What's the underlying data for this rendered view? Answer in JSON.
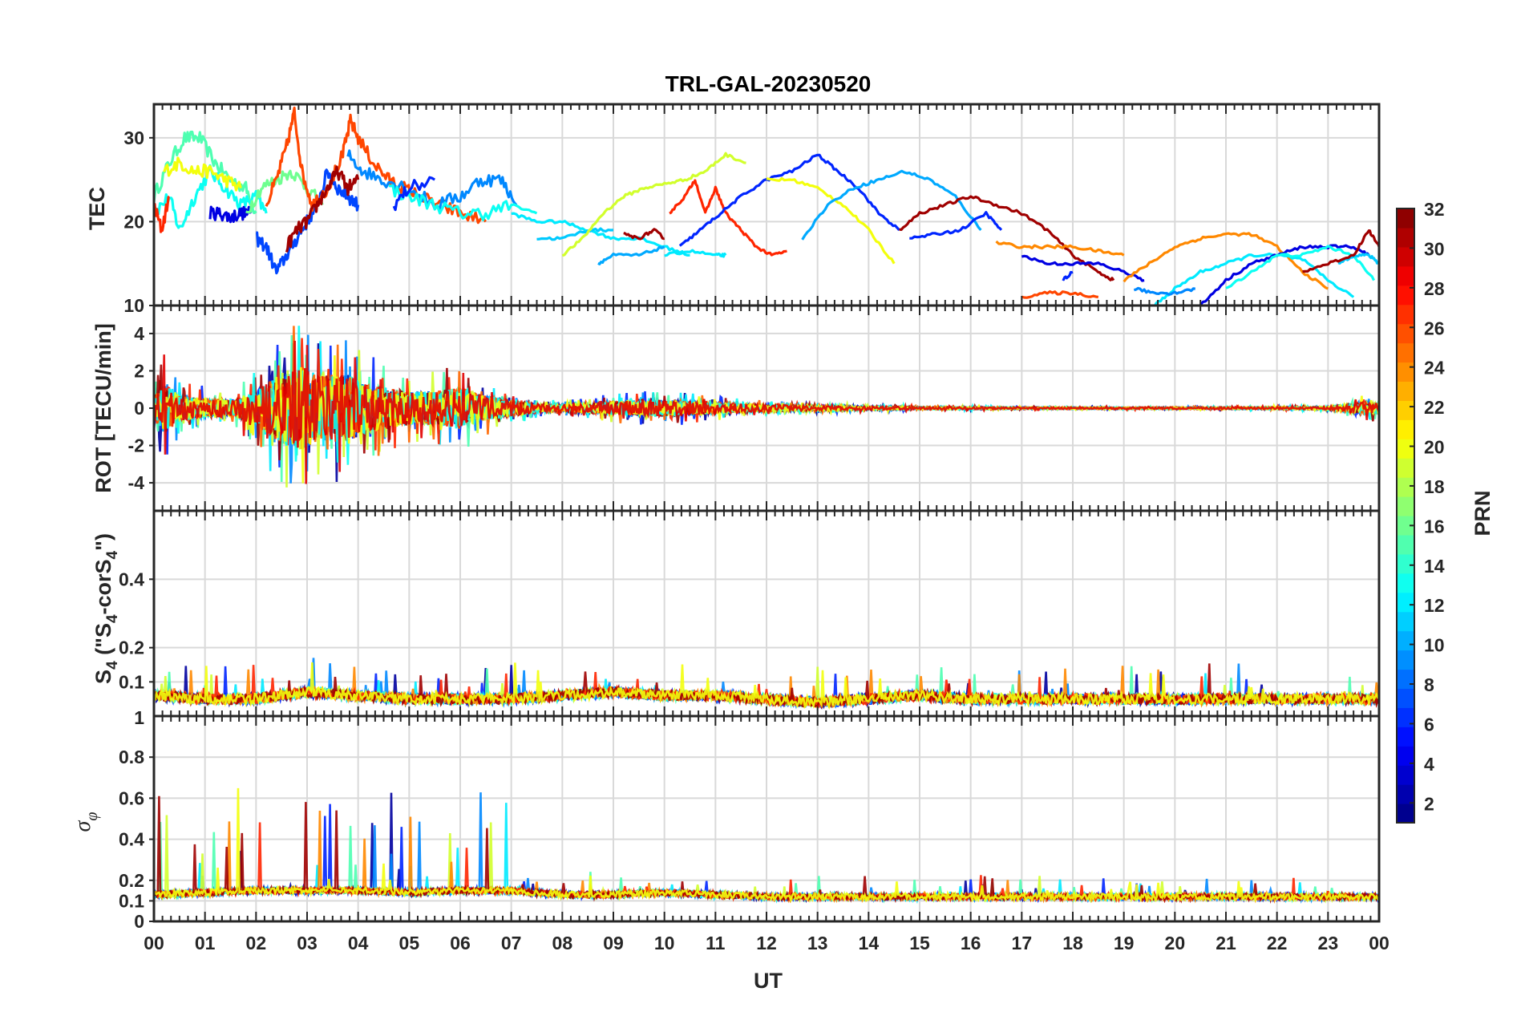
{
  "chart_data": {
    "type": "line",
    "title": "TRL-GAL-20230520",
    "xlabel": "UT",
    "x_range": [
      0,
      24
    ],
    "x_tick_labels": [
      "00",
      "01",
      "02",
      "03",
      "04",
      "05",
      "06",
      "07",
      "08",
      "09",
      "10",
      "11",
      "12",
      "13",
      "14",
      "15",
      "16",
      "17",
      "18",
      "19",
      "20",
      "21",
      "22",
      "23",
      "00"
    ],
    "colorbar": {
      "label": "PRN",
      "range": [
        1,
        32
      ],
      "tick_labels": [
        "2",
        "4",
        "6",
        "8",
        "10",
        "12",
        "14",
        "16",
        "18",
        "20",
        "22",
        "24",
        "26",
        "28",
        "30",
        "32"
      ],
      "colormap": "jet"
    },
    "panels": [
      {
        "name": "tec",
        "ylabel": "TEC",
        "ylim": [
          10,
          34
        ],
        "y_tick_labels": [
          "10",
          "20",
          "30"
        ],
        "y_ticks": [
          10,
          20,
          30
        ],
        "series": [
          {
            "prn": 15,
            "x": [
              0.0,
              0.3,
              0.6,
              0.9,
              1.2,
              1.5,
              1.8,
              2.0
            ],
            "y": [
              23,
              27,
              30,
              30,
              27,
              25,
              24,
              21
            ]
          },
          {
            "prn": 13,
            "x": [
              0.0,
              0.3,
              0.5,
              0.8,
              1.1,
              1.4,
              1.7,
              2.0,
              2.2
            ],
            "y": [
              21,
              23,
              19,
              23,
              26,
              24,
              22,
              23,
              21
            ]
          },
          {
            "prn": 20,
            "x": [
              0.2,
              0.5,
              0.8,
              1.1,
              1.4,
              1.7
            ],
            "y": [
              26,
              27,
              26,
              26,
              25,
              24
            ]
          },
          {
            "prn": 27,
            "x": [
              0.0,
              0.15,
              0.3
            ],
            "y": [
              22,
              19,
              23
            ]
          },
          {
            "prn": 4,
            "x": [
              1.1,
              1.3,
              1.5,
              1.7,
              1.9
            ],
            "y": [
              21,
              21,
              20.5,
              21,
              21
            ]
          },
          {
            "prn": 16,
            "x": [
              1.8,
              2.1,
              2.4,
              2.7,
              3.0,
              3.3
            ],
            "y": [
              21,
              24,
              25,
              26,
              24,
              22
            ]
          },
          {
            "prn": 7,
            "x": [
              2.0,
              2.2,
              2.4,
              2.6,
              2.8,
              3.0,
              3.2,
              3.4,
              3.6,
              3.8,
              4.0
            ],
            "y": [
              18,
              17,
              14,
              16,
              18,
              20,
              22,
              26,
              24,
              23,
              22
            ]
          },
          {
            "prn": 26,
            "x": [
              2.2,
              2.4,
              2.6,
              2.75,
              2.9,
              3.1,
              3.4,
              3.7,
              3.85,
              4.0,
              4.3,
              4.6,
              4.9,
              5.2,
              5.6,
              6.0,
              6.5
            ],
            "y": [
              22,
              25,
              29,
              33,
              26,
              22,
              24,
              28,
              32,
              30,
              27,
              25,
              24,
              23,
              22,
              21,
              20
            ]
          },
          {
            "prn": 31,
            "x": [
              2.6,
              2.8,
              3.0,
              3.2,
              3.4,
              3.6,
              3.8,
              4.0
            ],
            "y": [
              17,
              19,
              20,
              22,
              24,
              26,
              24,
              25
            ]
          },
          {
            "prn": 9,
            "x": [
              3.8,
              4.1,
              4.5,
              5.0,
              5.5,
              6.0,
              6.4,
              6.8,
              7.1
            ],
            "y": [
              28,
              26,
              25,
              24,
              22,
              23,
              25,
              25,
              22
            ]
          },
          {
            "prn": 13,
            "x": [
              4.6,
              5.0,
              5.5,
              6.0,
              6.5,
              7.0,
              7.5
            ],
            "y": [
              24,
              23,
              22,
              21,
              21,
              22,
              21
            ]
          },
          {
            "prn": 6,
            "x": [
              4.7,
              5.0,
              5.5
            ],
            "y": [
              22,
              24,
              25
            ]
          },
          {
            "prn": 12,
            "x": [
              7.0,
              7.5,
              8.0,
              8.5,
              9.0,
              9.5,
              10.0,
              10.5
            ],
            "y": [
              21,
              20,
              20,
              19,
              18,
              18,
              17,
              16
            ]
          },
          {
            "prn": 11,
            "x": [
              7.5,
              8.0,
              8.5,
              9.0
            ],
            "y": [
              18,
              18,
              19,
              19
            ]
          },
          {
            "prn": 19,
            "x": [
              8.0,
              8.4,
              8.8,
              9.2,
              9.6,
              10.0,
              10.4,
              10.8,
              11.2,
              11.6
            ],
            "y": [
              16,
              18,
              21,
              23,
              24,
              24.5,
              25,
              26,
              28,
              27
            ]
          },
          {
            "prn": 10,
            "x": [
              8.7,
              9.0,
              9.5,
              10.0
            ],
            "y": [
              15,
              16,
              16,
              17
            ]
          },
          {
            "prn": 12,
            "x": [
              10.0,
              10.5,
              11.0,
              11.2
            ],
            "y": [
              16,
              16.5,
              16,
              16
            ]
          },
          {
            "prn": 31,
            "x": [
              9.2,
              9.5,
              9.8,
              10.0
            ],
            "y": [
              18.5,
              18,
              19,
              18
            ]
          },
          {
            "prn": 27,
            "x": [
              10.1,
              10.4,
              10.6,
              10.8,
              11.0,
              11.2,
              11.5,
              11.8,
              12.1,
              12.4
            ],
            "y": [
              21,
              23,
              25,
              21,
              24,
              21,
              19,
              17,
              16,
              16.5
            ]
          },
          {
            "prn": 6,
            "x": [
              10.3,
              10.7,
              11.1,
              11.5,
              12.0,
              12.5,
              13.0,
              13.4,
              13.8,
              14.2,
              14.6
            ],
            "y": [
              17,
              19,
              21,
              23,
              25,
              26,
              28,
              26,
              24,
              21,
              19
            ]
          },
          {
            "prn": 20,
            "x": [
              12.0,
              12.5,
              13.0,
              13.5,
              14.0,
              14.5
            ],
            "y": [
              25,
              25,
              24,
              22,
              19,
              15
            ]
          },
          {
            "prn": 10,
            "x": [
              12.7,
              13.2,
              13.7,
              14.2,
              14.7,
              15.2,
              15.7,
              16.2
            ],
            "y": [
              18,
              22,
              24,
              25,
              26,
              25,
              23,
              19
            ]
          },
          {
            "prn": 31,
            "x": [
              14.6,
              15.0,
              15.5,
              16.0,
              16.5,
              17.0,
              17.5,
              18.0,
              18.5,
              18.8
            ],
            "y": [
              19,
              21,
              22,
              23,
              22,
              21,
              19,
              16,
              14,
              13
            ]
          },
          {
            "prn": 6,
            "x": [
              14.8,
              15.3,
              15.8,
              16.3,
              16.6
            ],
            "y": [
              18,
              18.5,
              19,
              21,
              19
            ]
          },
          {
            "prn": 24,
            "x": [
              16.5,
              17.0,
              17.5,
              18.0,
              18.5,
              19.0
            ],
            "y": [
              17.5,
              17,
              17,
              17,
              16.5,
              16
            ]
          },
          {
            "prn": 4,
            "x": [
              17.0,
              17.5,
              18.0,
              18.5,
              19.0,
              19.4
            ],
            "y": [
              16,
              15,
              15,
              15,
              14,
              13
            ]
          },
          {
            "prn": 6,
            "x": [
              17.8,
              18.0
            ],
            "y": [
              13,
              14
            ]
          },
          {
            "prn": 26,
            "x": [
              17.0,
              17.5,
              18.0,
              18.5
            ],
            "y": [
              11,
              11.5,
              11.5,
              11
            ]
          },
          {
            "prn": 24,
            "x": [
              19.0,
              19.5,
              20.0,
              20.5,
              21.0,
              21.5,
              22.0,
              22.5,
              23.0
            ],
            "y": [
              13,
              15,
              17,
              18,
              18.5,
              18.5,
              17,
              14,
              12
            ]
          },
          {
            "prn": 12,
            "x": [
              19.6,
              20.0,
              20.5,
              21.0,
              21.5,
              22.0,
              22.5,
              23.0,
              23.5
            ],
            "y": [
              10,
              12,
              14,
              15,
              16,
              16,
              15.5,
              13,
              11
            ]
          },
          {
            "prn": 9,
            "x": [
              19.2,
              19.6,
              20.0,
              20.4
            ],
            "y": [
              12,
              11.5,
              11.5,
              12
            ]
          },
          {
            "prn": 4,
            "x": [
              20.5,
              21.0,
              21.5,
              22.0,
              22.5,
              23.0,
              23.5,
              23.8
            ],
            "y": [
              10,
              13,
              15,
              16,
              17,
              17,
              17,
              16
            ]
          },
          {
            "prn": 13,
            "x": [
              21.0,
              21.5,
              22.0,
              22.5,
              23.0,
              23.5,
              23.9
            ],
            "y": [
              12,
              14,
              16,
              16,
              17,
              16,
              13
            ]
          },
          {
            "prn": 11,
            "x": [
              23.2,
              23.5,
              23.8,
              24.0
            ],
            "y": [
              15,
              16,
              16,
              15
            ]
          },
          {
            "prn": 31,
            "x": [
              22.5,
              23.0,
              23.5,
              23.8,
              24.0
            ],
            "y": [
              14,
              15,
              16,
              19,
              17
            ]
          }
        ]
      },
      {
        "name": "rot",
        "ylabel": "ROT [TECU/min]",
        "ylim": [
          -5.5,
          5.5
        ],
        "y_tick_labels": [
          "-4",
          "-2",
          "0",
          "2",
          "4"
        ],
        "y_ticks": [
          -4,
          -2,
          0,
          2,
          4
        ],
        "envelope": {
          "x": [
            0.0,
            0.2,
            0.5,
            1.0,
            1.5,
            2.0,
            2.3,
            2.6,
            2.9,
            3.2,
            3.5,
            3.8,
            4.1,
            4.5,
            5.0,
            5.5,
            6.0,
            6.5,
            7.0,
            7.5,
            8.0,
            9.0,
            10.0,
            11.0,
            12.0,
            13.0,
            14.0,
            15.0,
            17.0,
            19.0,
            21.0,
            23.0,
            23.8,
            24.0
          ],
          "amplitude": [
            1.5,
            3.0,
            1.5,
            1.2,
            1.0,
            2.0,
            3.5,
            4.5,
            5.0,
            4.0,
            4.0,
            4.0,
            3.0,
            2.5,
            2.0,
            2.0,
            2.5,
            1.5,
            1.0,
            0.5,
            0.4,
            0.8,
            1.0,
            0.7,
            0.4,
            0.3,
            0.2,
            0.15,
            0.1,
            0.1,
            0.1,
            0.15,
            0.8,
            0.6
          ]
        }
      },
      {
        "name": "s4",
        "ylabel": "S4 (\"S4-corS4\")",
        "ylabel_parts": {
          "s": "S",
          "sub1": "4",
          "mid": " (\"S",
          "sub2": "4",
          "mid2": "-corS",
          "sub3": "4",
          "end": "\")"
        },
        "ylim": [
          0,
          0.6
        ],
        "y_tick_labels": [
          "0.1",
          "0.2",
          "0.4"
        ],
        "y_ticks": [
          0.1,
          0.2,
          0.4
        ],
        "baseline": {
          "x": [
            0,
            1,
            2,
            3,
            4,
            5,
            6,
            7,
            8,
            9,
            10,
            11,
            12,
            13,
            14,
            15,
            16,
            17,
            18,
            19,
            20,
            21,
            22,
            23,
            24
          ],
          "level": [
            0.06,
            0.05,
            0.05,
            0.07,
            0.06,
            0.05,
            0.05,
            0.05,
            0.06,
            0.07,
            0.06,
            0.06,
            0.05,
            0.04,
            0.05,
            0.06,
            0.05,
            0.05,
            0.05,
            0.05,
            0.05,
            0.05,
            0.05,
            0.05,
            0.05
          ]
        }
      },
      {
        "name": "sigma",
        "ylabel": "σ_φ",
        "ylabel_parts": {
          "main": "σ",
          "sub": "φ"
        },
        "ylim": [
          0,
          1
        ],
        "y_tick_labels": [
          "0",
          "0.1",
          "0.2",
          "0.4",
          "0.6",
          "0.8"
        ],
        "y_ticks": [
          0,
          0.1,
          0.2,
          0.4,
          0.6,
          0.8
        ],
        "top_tick_label": "1",
        "baseline": {
          "x": [
            0,
            1,
            2,
            3,
            4,
            5,
            6,
            7,
            8,
            9,
            10,
            11,
            12,
            13,
            14,
            15,
            16,
            17,
            18,
            19,
            20,
            21,
            22,
            23,
            24
          ],
          "level": [
            0.13,
            0.14,
            0.15,
            0.15,
            0.15,
            0.14,
            0.15,
            0.15,
            0.13,
            0.13,
            0.14,
            0.13,
            0.12,
            0.12,
            0.12,
            0.12,
            0.12,
            0.12,
            0.12,
            0.12,
            0.12,
            0.12,
            0.12,
            0.12,
            0.12
          ]
        }
      }
    ]
  },
  "colors": {
    "axis": "#262626",
    "grid": "#d9d9d9"
  }
}
